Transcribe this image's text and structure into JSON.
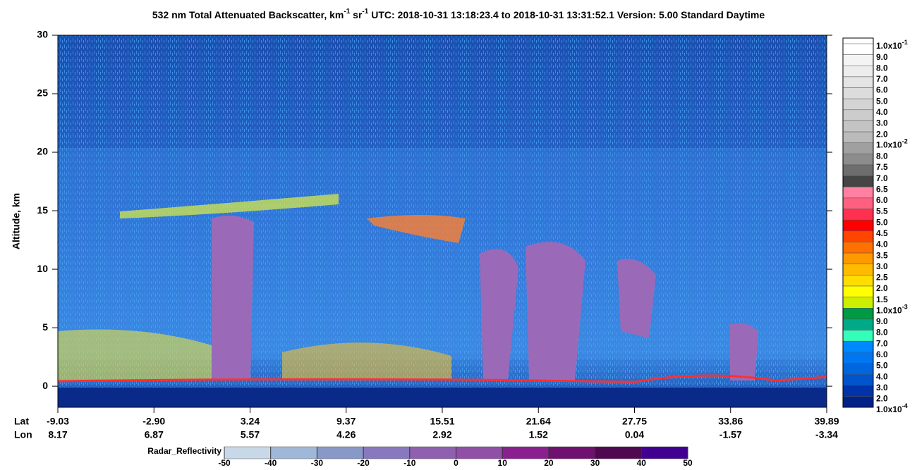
{
  "chart_data": {
    "type": "curtain",
    "title": [
      {
        "text": "532 nm Total Attenuated Backscatter, km"
      },
      {
        "text": "-1",
        "sup": true
      },
      {
        "text": " sr"
      },
      {
        "text": "-1",
        "sup": true
      },
      {
        "text": "     UTC:  2018-10-31 13:18:23.4  to  2018-10-31 13:31:52.1     Version: 5.00  Standard  Daytime"
      }
    ],
    "ylabel": "Altitude, km",
    "ylim": [
      -1.8,
      30
    ],
    "yticks": [
      0,
      5,
      10,
      15,
      20,
      25,
      30
    ],
    "x_row_labels": [
      "Lat",
      "Lon"
    ],
    "lat": [
      "-9.03",
      "-2.90",
      "3.24",
      "9.37",
      "15.51",
      "21.64",
      "27.75",
      "33.86",
      "39.89"
    ],
    "lon": [
      "8.17",
      "6.87",
      "5.57",
      "4.26",
      "2.92",
      "1.52",
      "0.04",
      "-1.57",
      "-3.34"
    ],
    "colorbar": {
      "labels": [
        {
          "text": "1.0x10",
          "sup": "-1"
        },
        "9.0",
        "8.0",
        "7.0",
        "6.0",
        "5.0",
        "4.0",
        "3.0",
        "2.0",
        {
          "text": "1.0x10",
          "sup": "-2"
        },
        "8.0",
        "7.5",
        "7.0",
        "6.5",
        "6.0",
        "5.5",
        "5.0",
        "4.5",
        "4.0",
        "3.5",
        "3.0",
        "2.5",
        "2.0",
        "1.5",
        {
          "text": "1.0x10",
          "sup": "-3"
        },
        "9.0",
        "8.0",
        "7.0",
        "6.0",
        "5.0",
        "4.0",
        "3.0",
        "2.0",
        {
          "text": "1.0x10",
          "sup": "-4"
        }
      ],
      "colors": [
        "#ffffff",
        "#f4f4f4",
        "#ececec",
        "#e4e4e4",
        "#dcdcdc",
        "#d4d4d4",
        "#cccccc",
        "#c4c4c4",
        "#bbbbbb",
        "#a0a0a0",
        "#8c8c8c",
        "#6e6e6e",
        "#454545",
        "#ff80a0",
        "#ff6080",
        "#ff3050",
        "#ff0000",
        "#ff4500",
        "#ff7000",
        "#ff9900",
        "#ffbb00",
        "#ffdd00",
        "#ffff00",
        "#ccee00",
        "#009944",
        "#00aa88",
        "#33ffbb",
        "#0088ff",
        "#0077ee",
        "#0066dd",
        "#0055cc",
        "#0033aa",
        "#002288"
      ]
    },
    "radar": {
      "label": "Radar_Reflectivity",
      "ticks": [
        -50,
        -40,
        -30,
        -20,
        -10,
        0,
        10,
        20,
        30,
        40,
        50
      ],
      "colors": [
        "#c8d8e8",
        "#a0b8d8",
        "#8898c8",
        "#8878c0",
        "#9060b0",
        "#9050a8",
        "#8a2090",
        "#701070",
        "#500850",
        "#400090"
      ]
    }
  }
}
